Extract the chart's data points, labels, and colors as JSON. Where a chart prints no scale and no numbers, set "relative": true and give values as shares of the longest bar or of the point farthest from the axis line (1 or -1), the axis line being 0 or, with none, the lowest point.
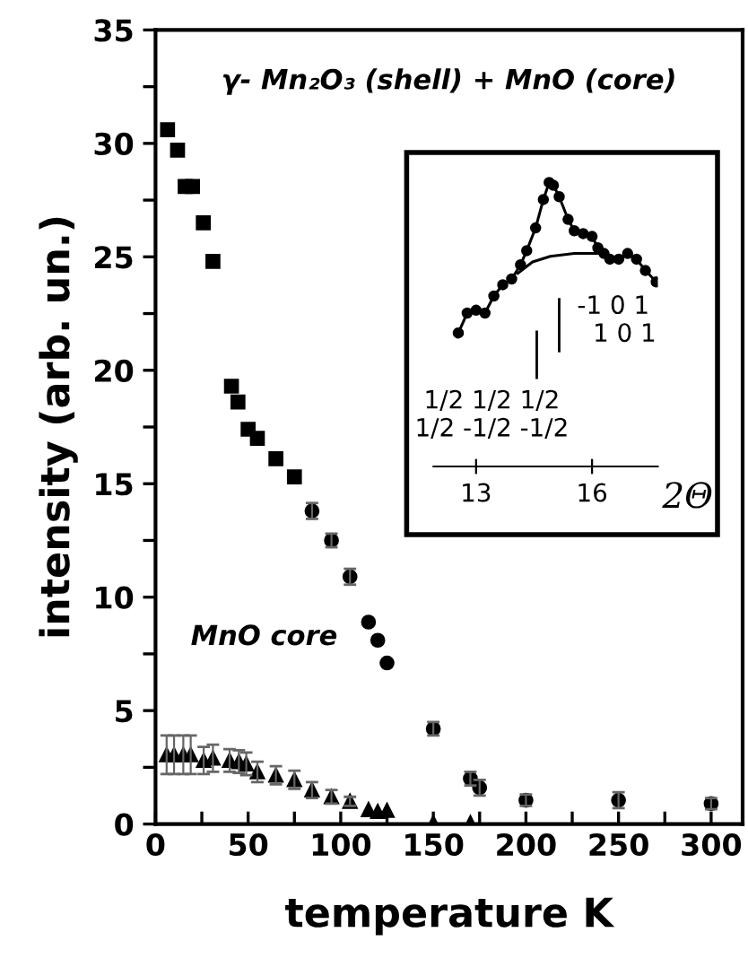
{
  "chart_data": [
    {
      "type": "scatter",
      "xlabel": "temperature K",
      "ylabel": "intensity (arb. un.)",
      "annotations": [
        "γ- Mn₂O₃ (shell) + MnO (core)",
        "MnO core"
      ],
      "xlim": [
        0,
        317
      ],
      "ylim": [
        0,
        35
      ],
      "xticks": [
        0,
        {
          "value": 25,
          "label": null
        },
        50,
        {
          "value": 75,
          "label": null
        },
        100,
        {
          "value": 125,
          "label": null
        },
        150,
        {
          "value": 175,
          "label": null
        },
        200,
        {
          "value": 225,
          "label": null
        },
        250,
        {
          "value": 275,
          "label": null
        },
        300
      ],
      "yticks": [
        0,
        {
          "value": 2.5,
          "label": null
        },
        5,
        {
          "value": 7.5,
          "label": null
        },
        10,
        {
          "value": 12.5,
          "label": null
        },
        15,
        {
          "value": 17.5,
          "label": null
        },
        20,
        {
          "value": 22.5,
          "label": null
        },
        25,
        {
          "value": 27.5,
          "label": null
        },
        30,
        {
          "value": 32.5,
          "label": null
        },
        35
      ],
      "grid": false,
      "legend": false,
      "series": [
        {
          "color": "#000000",
          "marker": "square",
          "x": [
            6.5,
            11.9,
            16,
            20,
            25.8,
            31,
            41,
            44.5,
            50,
            55,
            65,
            75
          ],
          "values": [
            30.6,
            29.7,
            28.1,
            28.1,
            26.5,
            24.8,
            19.3,
            18.6,
            17.4,
            17.0,
            16.1,
            15.3
          ]
        },
        {
          "color": "#000000",
          "marker": "circle",
          "x": [
            84.5,
            95,
            105,
            115,
            120,
            125,
            150,
            170,
            175,
            200,
            250,
            300
          ],
          "values": [
            13.8,
            12.5,
            10.9,
            8.9,
            8.1,
            7.1,
            4.2,
            2.0,
            1.6,
            1.05,
            1.05,
            0.9
          ],
          "errors": [
            0.35,
            0.3,
            0.35,
            null,
            null,
            null,
            0.3,
            0.3,
            0.35,
            0.25,
            0.35,
            0.25
          ]
        },
        {
          "color": "#000000",
          "marker": "triangle",
          "x": [
            6,
            10,
            15,
            19,
            26,
            31,
            40,
            45,
            49,
            55,
            65,
            75,
            84.5,
            95,
            105,
            115,
            120,
            125,
            150,
            170
          ],
          "values": [
            3.05,
            3.05,
            3.05,
            3.05,
            2.8,
            2.9,
            2.8,
            2.75,
            2.65,
            2.3,
            2.15,
            1.95,
            1.5,
            1.2,
            1.0,
            0.63,
            0.55,
            0.6,
            0.05,
            0.05
          ],
          "errors": [
            0.85,
            0.85,
            0.85,
            0.85,
            0.6,
            0.6,
            0.5,
            0.5,
            0.5,
            0.45,
            0.4,
            0.4,
            0.35,
            0.3,
            0.2,
            null,
            null,
            null,
            null,
            null
          ]
        }
      ]
    },
    {
      "type": "line",
      "relative": true,
      "xlabel": "2Θ",
      "xlim": [
        11.9,
        17.7
      ],
      "xticks": [
        13,
        16
      ],
      "tick_labels": "x",
      "grid": false,
      "annotations": [
        "1/2 1/2 1/2\n1/2 -1/2 -1/2",
        "-1 0 1\n  1 0 1"
      ],
      "ref_lines": [
        {
          "axis": "x",
          "value": 14.57,
          "color": "#000000"
        },
        {
          "axis": "x",
          "value": 15.15,
          "color": "#000000"
        }
      ],
      "series": [
        {
          "color": "#000000",
          "marker": "circle",
          "x": [
            12.54,
            12.77,
            13.0,
            13.23,
            13.46,
            13.69,
            13.92,
            14.15,
            14.31,
            14.54,
            14.74,
            14.89,
            15.0,
            15.15,
            15.38,
            15.54,
            15.77,
            16.0,
            16.15,
            16.31,
            16.46,
            16.69,
            16.92,
            17.15,
            17.38,
            17.66
          ],
          "values": [
            0.47,
            0.54,
            0.55,
            0.54,
            0.6,
            0.64,
            0.66,
            0.71,
            0.76,
            0.84,
            0.94,
            1.0,
            0.99,
            0.95,
            0.87,
            0.83,
            0.82,
            0.81,
            0.77,
            0.75,
            0.73,
            0.73,
            0.75,
            0.73,
            0.69,
            0.65
          ]
        },
        {
          "color": "#000000",
          "marker": "none",
          "x": [
            14.08,
            14.46,
            14.92,
            15.54,
            16.31
          ],
          "values": [
            0.68,
            0.72,
            0.74,
            0.75,
            0.75
          ]
        }
      ]
    }
  ]
}
